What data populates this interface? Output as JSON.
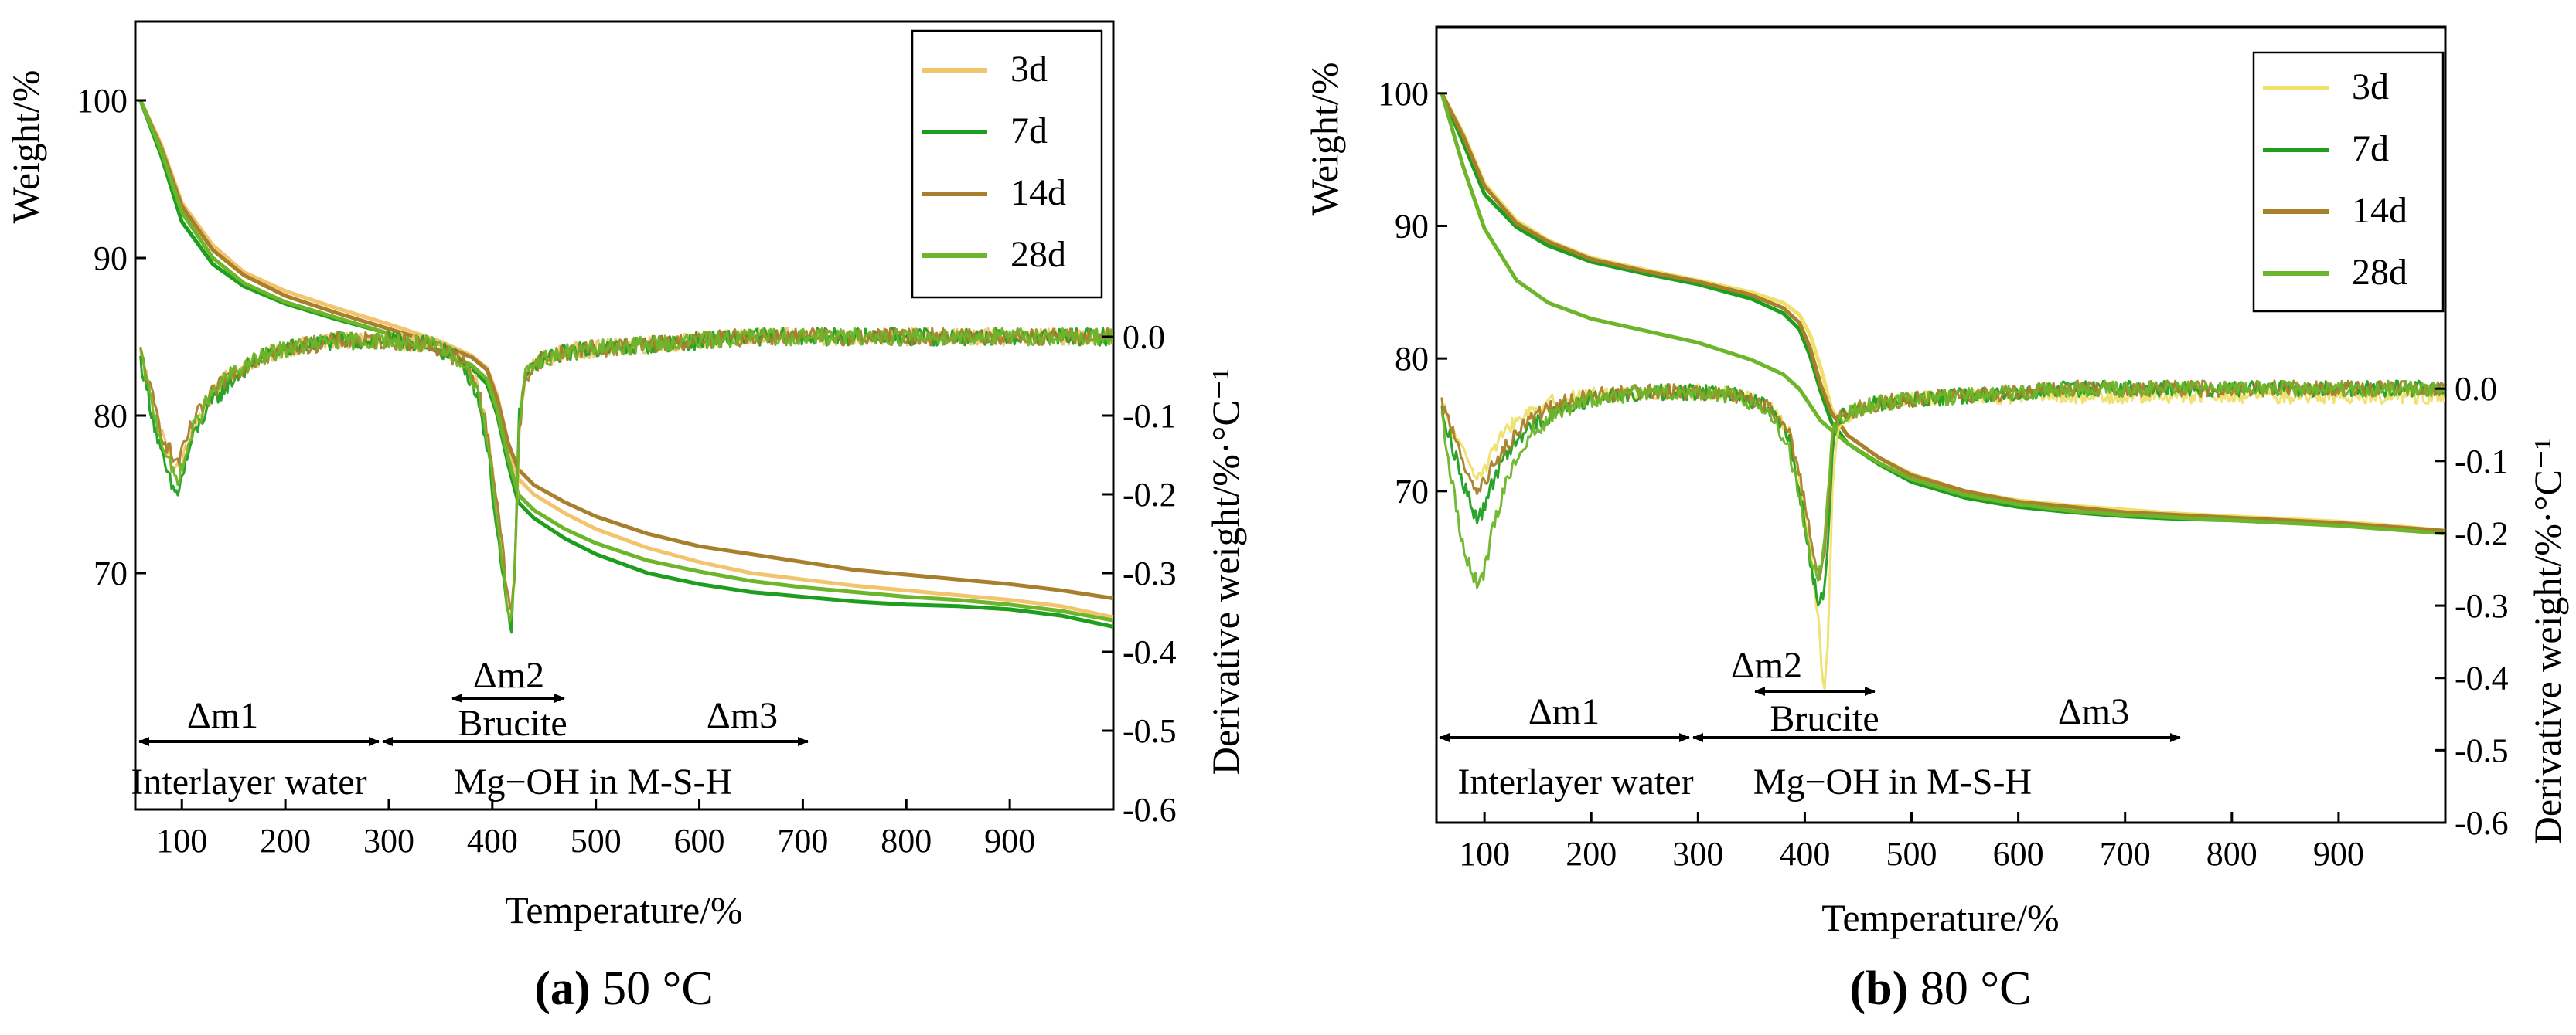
{
  "chart_data": [
    {
      "type": "line",
      "panel": "a",
      "caption_bold": "(a)",
      "caption_rest": " 50 °C",
      "xlabel": "Temperature/%",
      "ylabel": "Weight/%",
      "y2label": "Derivative weight/%·°C⁻¹",
      "xlim": [
        55,
        1000
      ],
      "xticks": [
        100,
        200,
        300,
        400,
        500,
        600,
        700,
        800,
        900
      ],
      "ylim": [
        55,
        105
      ],
      "yticks": [
        70,
        80,
        90,
        100
      ],
      "y2lim": [
        -0.6,
        0.4
      ],
      "y2ticks": [
        0.0,
        -0.1,
        -0.2,
        -0.3,
        -0.4,
        -0.5,
        -0.6
      ],
      "legend_position": "top-right",
      "series": [
        {
          "name": "3d",
          "color": "#F2C46D"
        },
        {
          "name": "7d",
          "color": "#1E9E1E"
        },
        {
          "name": "14d",
          "color": "#A87F2C"
        },
        {
          "name": "28d",
          "color": "#6DB52A"
        }
      ],
      "tga": {
        "x": [
          60,
          80,
          100,
          130,
          160,
          200,
          250,
          300,
          350,
          380,
          395,
          405,
          415,
          425,
          440,
          470,
          500,
          550,
          600,
          650,
          700,
          750,
          800,
          850,
          900,
          950,
          1000
        ],
        "3d": [
          100,
          97.2,
          93.5,
          90.8,
          89.1,
          87.9,
          86.8,
          85.8,
          84.7,
          83.8,
          83.0,
          81.2,
          78.3,
          76.0,
          75.0,
          73.8,
          72.8,
          71.6,
          70.7,
          70.0,
          69.6,
          69.2,
          68.9,
          68.6,
          68.3,
          67.9,
          67.2
        ],
        "7d": [
          100,
          96.5,
          92.3,
          89.6,
          88.2,
          87.1,
          86.1,
          85.2,
          84.0,
          83.0,
          82.0,
          80.0,
          77.0,
          74.5,
          73.5,
          72.2,
          71.2,
          70.0,
          69.3,
          68.8,
          68.5,
          68.2,
          68.0,
          67.9,
          67.7,
          67.3,
          66.6
        ],
        "14d": [
          100,
          97.0,
          93.3,
          90.5,
          88.9,
          87.6,
          86.5,
          85.5,
          84.5,
          83.7,
          82.9,
          81.0,
          78.3,
          76.6,
          75.6,
          74.5,
          73.6,
          72.5,
          71.7,
          71.2,
          70.7,
          70.2,
          69.9,
          69.6,
          69.3,
          68.9,
          68.4
        ],
        "28d": [
          100,
          96.8,
          92.9,
          90.0,
          88.4,
          87.2,
          86.2,
          85.2,
          84.1,
          83.2,
          82.3,
          80.3,
          77.4,
          75.0,
          74.0,
          72.8,
          71.9,
          70.8,
          70.1,
          69.5,
          69.1,
          68.8,
          68.5,
          68.3,
          68.0,
          67.6,
          67.0
        ]
      },
      "dtg": {
        "x": [
          60,
          70,
          80,
          90,
          95,
          100,
          110,
          125,
          145,
          170,
          200,
          250,
          300,
          340,
          370,
          385,
          395,
          405,
          413,
          418,
          422,
          426,
          432,
          445,
          470,
          500,
          550,
          600,
          650,
          700,
          750,
          800,
          850,
          900,
          950,
          1000
        ],
        "3d": [
          -0.02,
          -0.07,
          -0.12,
          -0.16,
          -0.17,
          -0.16,
          -0.12,
          -0.08,
          -0.05,
          -0.03,
          -0.015,
          -0.005,
          -0.005,
          -0.01,
          -0.03,
          -0.06,
          -0.12,
          -0.22,
          -0.32,
          -0.37,
          -0.3,
          -0.12,
          -0.05,
          -0.03,
          -0.02,
          -0.015,
          -0.01,
          -0.005,
          0.0,
          0.0,
          0.0,
          0.0,
          0.0,
          0.0,
          0.0,
          0.0
        ],
        "7d": [
          -0.03,
          -0.09,
          -0.15,
          -0.19,
          -0.2,
          -0.18,
          -0.13,
          -0.09,
          -0.06,
          -0.03,
          -0.015,
          -0.005,
          -0.005,
          -0.01,
          -0.03,
          -0.07,
          -0.14,
          -0.25,
          -0.34,
          -0.38,
          -0.28,
          -0.1,
          -0.05,
          -0.03,
          -0.02,
          -0.015,
          -0.01,
          -0.005,
          0.0,
          0.0,
          0.0,
          0.0,
          0.0,
          0.0,
          0.0,
          0.0
        ],
        "14d": [
          -0.02,
          -0.07,
          -0.12,
          -0.15,
          -0.16,
          -0.15,
          -0.11,
          -0.08,
          -0.05,
          -0.03,
          -0.015,
          -0.005,
          -0.005,
          -0.01,
          -0.03,
          -0.06,
          -0.12,
          -0.21,
          -0.31,
          -0.35,
          -0.29,
          -0.12,
          -0.05,
          -0.03,
          -0.02,
          -0.015,
          -0.01,
          -0.005,
          0.0,
          0.0,
          0.0,
          0.0,
          0.0,
          0.0,
          0.0,
          0.0
        ],
        "28d": [
          -0.02,
          -0.08,
          -0.13,
          -0.17,
          -0.18,
          -0.17,
          -0.12,
          -0.08,
          -0.05,
          -0.03,
          -0.015,
          -0.005,
          -0.005,
          -0.01,
          -0.03,
          -0.06,
          -0.13,
          -0.23,
          -0.33,
          -0.36,
          -0.29,
          -0.11,
          -0.05,
          -0.03,
          -0.02,
          -0.015,
          -0.01,
          -0.005,
          0.0,
          0.0,
          0.0,
          0.0,
          0.0,
          0.0,
          0.0,
          0.0
        ]
      },
      "annotations": {
        "dm1": "Δm1",
        "dm2": "Δm2",
        "dm3": "Δm3",
        "brucite": "Brucite",
        "interlayer": "Interlayer water",
        "mgoh": "Mg−OH in M-S-H"
      }
    },
    {
      "type": "line",
      "panel": "b",
      "caption_bold": "(b)",
      "caption_rest": " 80 °C",
      "xlabel": "Temperature/%",
      "ylabel": "Weight/%",
      "y2label": "Derivative weight/%·°C⁻¹",
      "xlim": [
        55,
        1000
      ],
      "xticks": [
        100,
        200,
        300,
        400,
        500,
        600,
        700,
        800,
        900
      ],
      "ylim": [
        45,
        105
      ],
      "yticks": [
        70,
        80,
        90,
        100
      ],
      "y2lim": [
        -0.6,
        0.5
      ],
      "y2ticks": [
        0.0,
        -0.1,
        -0.2,
        -0.3,
        -0.4,
        -0.5,
        -0.6
      ],
      "legend_position": "top-right",
      "series": [
        {
          "name": "3d",
          "color": "#EFE06A"
        },
        {
          "name": "7d",
          "color": "#1E9E1E"
        },
        {
          "name": "14d",
          "color": "#A87F2C"
        },
        {
          "name": "28d",
          "color": "#6DB52A"
        }
      ],
      "tga": {
        "x": [
          60,
          80,
          100,
          130,
          160,
          200,
          250,
          300,
          350,
          380,
          395,
          405,
          415,
          425,
          440,
          470,
          500,
          550,
          600,
          650,
          700,
          750,
          800,
          850,
          900,
          950,
          1000
        ],
        "3d": [
          100,
          97.0,
          93.2,
          90.4,
          88.9,
          87.6,
          86.7,
          85.9,
          85.0,
          84.2,
          83.3,
          81.8,
          79.3,
          76.2,
          74.2,
          72.5,
          71.3,
          70.0,
          69.3,
          68.9,
          68.6,
          68.3,
          68.1,
          67.9,
          67.7,
          67.4,
          67.0
        ],
        "7d": [
          100,
          96.3,
          92.4,
          89.9,
          88.5,
          87.3,
          86.4,
          85.6,
          84.5,
          83.4,
          82.2,
          80.2,
          77.5,
          75.2,
          73.6,
          72.0,
          70.7,
          69.5,
          68.8,
          68.4,
          68.1,
          67.9,
          67.8,
          67.6,
          67.5,
          67.2,
          66.9
        ],
        "14d": [
          100,
          96.8,
          93.0,
          90.2,
          88.8,
          87.5,
          86.6,
          85.8,
          84.8,
          83.8,
          82.7,
          80.8,
          78.0,
          75.9,
          74.2,
          72.5,
          71.2,
          70.0,
          69.2,
          68.8,
          68.4,
          68.2,
          68.0,
          67.8,
          67.6,
          67.3,
          67.0
        ],
        "28d": [
          100,
          94.5,
          89.8,
          85.9,
          84.2,
          83.0,
          82.1,
          81.2,
          79.9,
          78.8,
          77.7,
          76.5,
          75.3,
          74.6,
          73.6,
          72.1,
          70.9,
          69.7,
          69.0,
          68.5,
          68.2,
          68.0,
          67.8,
          67.6,
          67.4,
          67.1,
          66.8
        ]
      },
      "dtg": {
        "x": [
          60,
          70,
          80,
          90,
          95,
          100,
          110,
          125,
          145,
          170,
          200,
          250,
          300,
          340,
          370,
          385,
          395,
          405,
          413,
          418,
          422,
          426,
          432,
          445,
          470,
          500,
          550,
          600,
          650,
          700,
          750,
          800,
          850,
          900,
          950,
          1000
        ],
        "3d": [
          -0.02,
          -0.06,
          -0.09,
          -0.11,
          -0.12,
          -0.11,
          -0.08,
          -0.05,
          -0.03,
          -0.015,
          -0.01,
          -0.005,
          -0.005,
          -0.01,
          -0.03,
          -0.06,
          -0.12,
          -0.22,
          -0.33,
          -0.42,
          -0.34,
          -0.13,
          -0.05,
          -0.03,
          -0.02,
          -0.015,
          -0.01,
          -0.01,
          -0.01,
          -0.01,
          -0.01,
          -0.01,
          -0.01,
          -0.01,
          -0.01,
          -0.01
        ],
        "7d": [
          -0.03,
          -0.08,
          -0.13,
          -0.17,
          -0.18,
          -0.16,
          -0.12,
          -0.08,
          -0.05,
          -0.03,
          -0.015,
          -0.005,
          -0.005,
          -0.01,
          -0.03,
          -0.07,
          -0.14,
          -0.24,
          -0.3,
          -0.28,
          -0.2,
          -0.08,
          -0.04,
          -0.03,
          -0.02,
          -0.015,
          -0.01,
          -0.005,
          0.0,
          0.0,
          0.0,
          0.0,
          0.0,
          0.0,
          0.0,
          0.0
        ],
        "14d": [
          -0.02,
          -0.06,
          -0.1,
          -0.13,
          -0.14,
          -0.13,
          -0.1,
          -0.07,
          -0.04,
          -0.02,
          -0.01,
          -0.005,
          -0.005,
          -0.01,
          -0.03,
          -0.06,
          -0.12,
          -0.2,
          -0.26,
          -0.24,
          -0.17,
          -0.07,
          -0.04,
          -0.03,
          -0.02,
          -0.015,
          -0.01,
          -0.005,
          0.0,
          0.0,
          0.0,
          0.0,
          0.0,
          0.0,
          0.0,
          0.0
        ],
        "28d": [
          -0.04,
          -0.13,
          -0.22,
          -0.26,
          -0.27,
          -0.25,
          -0.18,
          -0.11,
          -0.06,
          -0.03,
          -0.015,
          -0.005,
          -0.005,
          -0.01,
          -0.04,
          -0.08,
          -0.15,
          -0.23,
          -0.26,
          -0.22,
          -0.14,
          -0.06,
          -0.04,
          -0.03,
          -0.02,
          -0.015,
          -0.01,
          -0.005,
          0.0,
          0.0,
          0.0,
          0.0,
          0.0,
          0.0,
          0.0,
          0.0
        ]
      },
      "annotations": {
        "dm1": "Δm1",
        "dm2": "Δm2",
        "dm3": "Δm3",
        "brucite": "Brucite",
        "interlayer": "Interlayer water",
        "mgoh": "Mg−OH in M-S-H"
      }
    }
  ]
}
